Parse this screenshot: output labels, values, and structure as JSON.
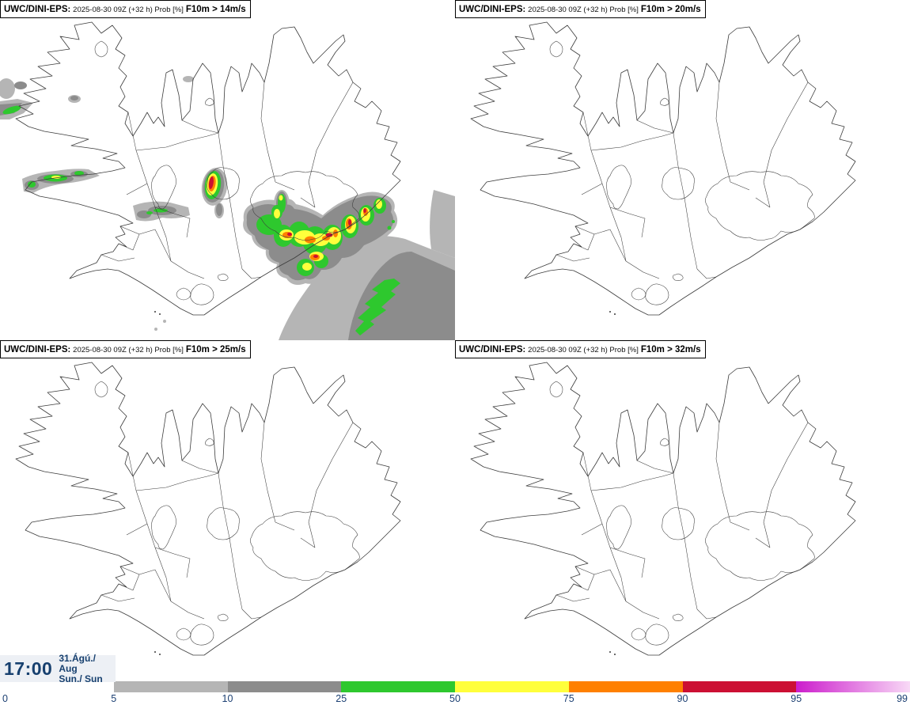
{
  "panels": [
    {
      "model": "UWC/DINI-EPS",
      "sep": ":",
      "run": "2025-08-30 09Z (+32 h) Prob [%]",
      "threshold": "F10m > 14m/s"
    },
    {
      "model": "UWC/DINI-EPS",
      "sep": ":",
      "run": "2025-08-30 09Z (+32 h) Prob [%]",
      "threshold": "F10m > 20m/s"
    },
    {
      "model": "UWC/DINI-EPS",
      "sep": ":",
      "run": "2025-08-30 09Z (+32 h) Prob [%]",
      "threshold": "F10m > 25m/s"
    },
    {
      "model": "UWC/DINI-EPS",
      "sep": ":",
      "run": "2025-08-30 09Z (+32 h) Prob [%]",
      "threshold": "F10m > 32m/s"
    }
  ],
  "clock": {
    "time": "17:00",
    "date": "31.Ágú./ Aug",
    "day": "Sun./ Sun"
  },
  "colorbar": {
    "unit": "Prob [%]",
    "ticks": [
      {
        "label": "0",
        "pos": 0
      },
      {
        "label": "5",
        "pos": 12.5
      },
      {
        "label": "10",
        "pos": 25
      },
      {
        "label": "25",
        "pos": 37.5
      },
      {
        "label": "50",
        "pos": 50
      },
      {
        "label": "75",
        "pos": 62.5
      },
      {
        "label": "90",
        "pos": 75
      },
      {
        "label": "95",
        "pos": 87.5
      },
      {
        "label": "99",
        "pos": 100
      }
    ],
    "segments": [
      {
        "from": 0,
        "to": 12.5,
        "color": "#ffffff"
      },
      {
        "from": 12.5,
        "to": 25,
        "color": "#b5b5b5"
      },
      {
        "from": 25,
        "to": 37.5,
        "color": "#8c8c8c"
      },
      {
        "from": 37.5,
        "to": 50,
        "color": "#2ec82e"
      },
      {
        "from": 50,
        "to": 62.5,
        "color": "#ffff3c"
      },
      {
        "from": 62.5,
        "to": 75,
        "color": "#ff8000"
      },
      {
        "from": 75,
        "to": 87.5,
        "color": "#cc1033"
      },
      {
        "from": 87.5,
        "to": 100,
        "color": "#cc1dcc",
        "color2": "#f8d9f6",
        "gradient": true
      }
    ]
  },
  "map": {
    "region": "Iceland",
    "line_color": "#3b3b3b"
  }
}
